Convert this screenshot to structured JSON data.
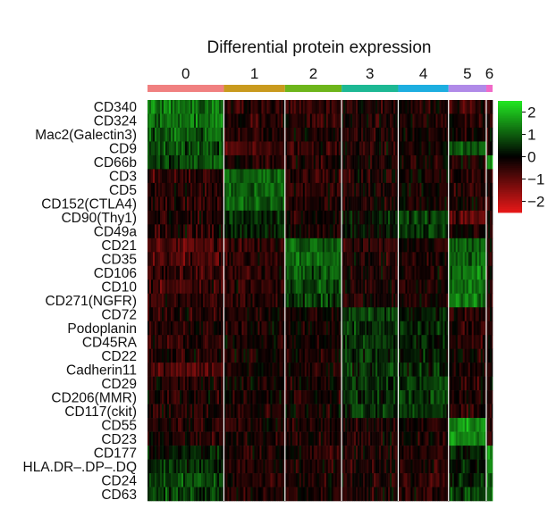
{
  "chart_data": {
    "type": "heatmap",
    "title": "Differential protein expression",
    "clusters": [
      "0",
      "1",
      "2",
      "3",
      "4",
      "5",
      "6"
    ],
    "cluster_colors": [
      "#F08080",
      "#C99A1E",
      "#6DB51B",
      "#1DB894",
      "#1DAEE0",
      "#B08AE8",
      "#F06AC8"
    ],
    "cluster_relative_sizes": [
      85,
      68,
      63,
      63,
      56,
      42,
      7
    ],
    "proteins": [
      "CD340",
      "CD324",
      "Mac2(Galectin3)",
      "CD9",
      "CD66b",
      "CD3",
      "CD5",
      "CD152(CTLA4)",
      "CD90(Thy1)",
      "CD49a",
      "CD21",
      "CD35",
      "CD106",
      "CD10",
      "CD271(NGFR)",
      "CD72",
      "Podoplanin",
      "CD45RA",
      "CD22",
      "Cadherin11",
      "CD29",
      "CD206(MMR)",
      "CD117(ckit)",
      "CD55",
      "CD23",
      "CD177",
      "HLA.DR–.DP–.DQ",
      "CD24",
      "CD63"
    ],
    "mean_scaled_expression": [
      [
        1.2,
        -0.4,
        -0.5,
        -0.3,
        -0.2,
        -0.5,
        -0.3
      ],
      [
        1.2,
        -0.4,
        -0.4,
        -0.3,
        -0.2,
        -0.3,
        -0.3
      ],
      [
        1.0,
        -0.3,
        -0.4,
        -0.3,
        -0.2,
        -0.3,
        -0.2
      ],
      [
        0.7,
        -0.7,
        -0.4,
        -0.3,
        -0.2,
        1.0,
        -0.2
      ],
      [
        0.8,
        -0.3,
        -0.4,
        -0.3,
        -0.2,
        -0.3,
        1.5
      ],
      [
        -0.5,
        1.1,
        -0.4,
        -0.3,
        -0.2,
        -0.3,
        -0.3
      ],
      [
        -0.4,
        1.1,
        -0.4,
        -0.3,
        -0.2,
        -0.4,
        -0.3
      ],
      [
        -0.4,
        0.9,
        -0.3,
        -0.2,
        -0.2,
        -0.3,
        -0.3
      ],
      [
        -0.3,
        0.5,
        -0.2,
        0.2,
        0.6,
        -1.0,
        -0.3
      ],
      [
        -0.3,
        0.4,
        -0.3,
        0.2,
        0.5,
        -0.2,
        -0.3
      ],
      [
        -0.7,
        -0.5,
        1.1,
        -0.4,
        -0.3,
        1.0,
        -0.4
      ],
      [
        -0.7,
        -0.5,
        1.1,
        -0.4,
        -0.3,
        1.0,
        -0.4
      ],
      [
        -0.6,
        -0.4,
        0.9,
        -0.3,
        -0.3,
        1.2,
        -0.4
      ],
      [
        -0.6,
        -0.4,
        0.8,
        -0.3,
        -0.3,
        1.2,
        -0.4
      ],
      [
        -0.5,
        -0.4,
        0.7,
        -0.3,
        -0.3,
        1.3,
        -0.4
      ],
      [
        -0.4,
        -0.2,
        -0.2,
        0.6,
        0.3,
        -0.3,
        -0.3
      ],
      [
        -0.3,
        -0.2,
        -0.2,
        0.5,
        0.3,
        -0.3,
        -0.3
      ],
      [
        -0.4,
        -0.2,
        -0.2,
        0.5,
        0.3,
        -0.3,
        -0.3
      ],
      [
        -0.3,
        -0.2,
        -0.2,
        0.4,
        0.3,
        -0.2,
        -0.3
      ],
      [
        -0.8,
        -0.2,
        -0.2,
        0.5,
        0.4,
        -0.3,
        -0.3
      ],
      [
        -0.3,
        -0.2,
        -0.2,
        0.4,
        0.6,
        -0.3,
        -0.3
      ],
      [
        -0.3,
        -0.2,
        -0.2,
        0.4,
        0.6,
        -0.3,
        -0.3
      ],
      [
        -0.3,
        -0.2,
        -0.2,
        0.4,
        0.5,
        -0.3,
        -0.3
      ],
      [
        -0.3,
        -0.3,
        -0.3,
        -0.2,
        -0.2,
        1.5,
        -0.3
      ],
      [
        -0.3,
        -0.3,
        -0.3,
        -0.2,
        -0.2,
        1.4,
        -0.3
      ],
      [
        0.2,
        -0.3,
        -0.3,
        -0.3,
        -0.3,
        0.3,
        1.5
      ],
      [
        0.5,
        -0.3,
        -0.3,
        -0.3,
        -0.3,
        0.2,
        1.5
      ],
      [
        0.7,
        -0.3,
        -0.3,
        -0.3,
        -0.3,
        0.4,
        1.2
      ],
      [
        0.6,
        -0.2,
        -0.3,
        -0.3,
        -0.3,
        0.7,
        0.9
      ]
    ],
    "colorbar": {
      "ticks": [
        "2",
        "1",
        "0",
        "−1",
        "−2"
      ],
      "tick_values": [
        2,
        1,
        0,
        -1,
        -2
      ],
      "range": [
        -2.5,
        2.5
      ],
      "colors": {
        "high": "#22E822",
        "mid": "#000000",
        "low": "#E81818"
      }
    }
  }
}
